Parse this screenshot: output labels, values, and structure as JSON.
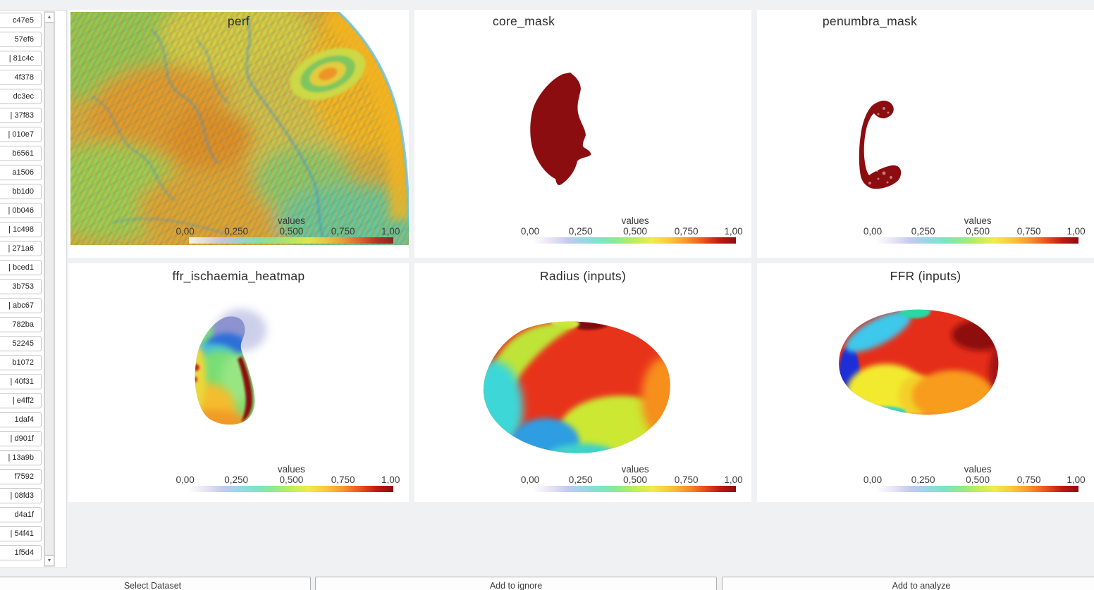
{
  "sidebar": {
    "items": [
      "c47e5",
      "57ef6",
      "| 81c4c",
      "4f378",
      "dc3ec",
      "| 37f83",
      "| 010e7",
      "b6561",
      "a1506",
      "bb1d0",
      "| 0b046",
      "| 1c498",
      "| 271a6",
      "| bced1",
      "3b753",
      "| abc67",
      "782ba",
      "52245",
      "b1072",
      "| 40f31",
      "| e4ff2",
      "1daf4",
      "| d901f",
      "| 13a9b",
      "f7592",
      "| 08fd3",
      "d4a1f",
      "| 54f41",
      "1f5d4"
    ]
  },
  "panels": [
    {
      "id": "perf",
      "title": "perf"
    },
    {
      "id": "core_mask",
      "title": "core_mask"
    },
    {
      "id": "penumbra_mask",
      "title": "penumbra_mask"
    },
    {
      "id": "ffr_ischaemia_heatmap",
      "title": "ffr_ischaemia_heatmap"
    },
    {
      "id": "radius_inputs",
      "title": "Radius (inputs)"
    },
    {
      "id": "ffr_inputs",
      "title": "FFR (inputs)"
    }
  ],
  "scalebar": {
    "title": "values",
    "ticks": [
      "0,00",
      "0,250",
      "0,500",
      "0,750",
      "1,00"
    ],
    "range": [
      0,
      1
    ]
  },
  "footer": {
    "buttons": [
      "Select Dataset",
      "Add to ignore",
      "Add to analyze"
    ]
  },
  "colors": {
    "mask_red": "#8b0d10",
    "colormap": [
      "#fdfdfd",
      "#e7e3f5",
      "#c3c9f0",
      "#96d8e6",
      "#79e6c4",
      "#8feb8b",
      "#bfee57",
      "#f0ec48",
      "#fbc93a",
      "#f89a2c",
      "#f1551f",
      "#c31a12",
      "#8f0d10"
    ]
  }
}
